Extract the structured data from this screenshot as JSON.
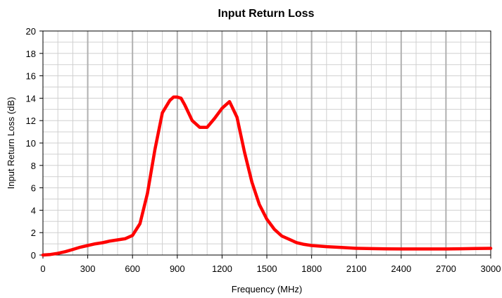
{
  "chart_data": {
    "type": "line",
    "title": "Input Return Loss",
    "xlabel": "Frequency (MHz)",
    "ylabel": "Input Return Loss (dB)",
    "xlim": [
      0,
      3000
    ],
    "ylim": [
      0,
      20
    ],
    "x_ticks": [
      0,
      300,
      600,
      900,
      1200,
      1500,
      1800,
      2100,
      2400,
      2700,
      3000
    ],
    "x_tick_labels": [
      "0",
      "300",
      "600",
      "900",
      "1200",
      "1500",
      "1800",
      "2100",
      "2400",
      "2700",
      "3000"
    ],
    "y_ticks": [
      0,
      2,
      4,
      6,
      8,
      10,
      12,
      14,
      16,
      18,
      20
    ],
    "y_tick_labels": [
      "0",
      "2",
      "4",
      "6",
      "8",
      "10",
      "12",
      "14",
      "16",
      "18",
      "20"
    ],
    "grid": true,
    "legend": "none",
    "series": [
      {
        "color": "#ff0000",
        "x": [
          0,
          50,
          100,
          150,
          200,
          250,
          300,
          350,
          400,
          450,
          500,
          550,
          600,
          650,
          700,
          750,
          800,
          850,
          875,
          900,
          925,
          950,
          1000,
          1050,
          1100,
          1150,
          1200,
          1250,
          1300,
          1350,
          1400,
          1450,
          1500,
          1550,
          1600,
          1650,
          1700,
          1750,
          1800,
          1900,
          2000,
          2100,
          2200,
          2300,
          2400,
          2500,
          2600,
          2700,
          2800,
          2900,
          3000
        ],
        "y": [
          0.0,
          0.05,
          0.15,
          0.3,
          0.5,
          0.7,
          0.85,
          1.0,
          1.1,
          1.25,
          1.35,
          1.45,
          1.75,
          2.8,
          5.5,
          9.4,
          12.7,
          13.8,
          14.1,
          14.1,
          14.0,
          13.4,
          12.0,
          11.4,
          11.4,
          12.2,
          13.1,
          13.7,
          12.3,
          9.2,
          6.5,
          4.5,
          3.2,
          2.3,
          1.7,
          1.4,
          1.1,
          0.95,
          0.85,
          0.75,
          0.68,
          0.6,
          0.57,
          0.55,
          0.54,
          0.54,
          0.54,
          0.54,
          0.56,
          0.58,
          0.6
        ]
      }
    ]
  }
}
